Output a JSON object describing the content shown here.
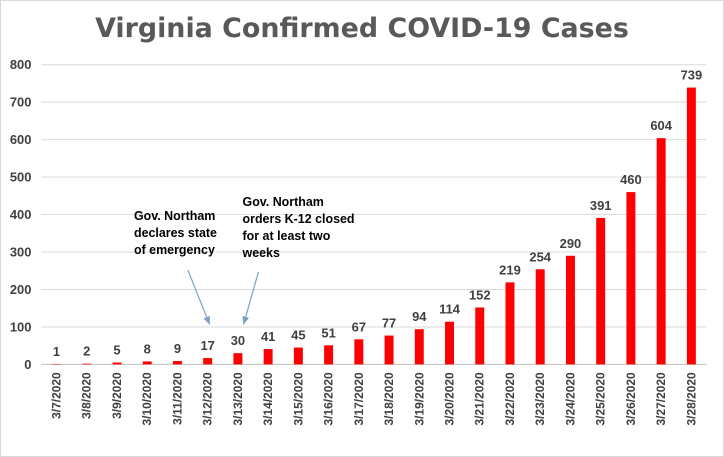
{
  "chart_data": {
    "type": "bar",
    "title": "Virginia Confirmed COVID-19 Cases",
    "categories": [
      "3/7/2020",
      "3/8/2020",
      "3/9/2020",
      "3/10/2020",
      "3/11/2020",
      "3/12/2020",
      "3/13/2020",
      "3/14/2020",
      "3/15/2020",
      "3/16/2020",
      "3/17/2020",
      "3/18/2020",
      "3/19/2020",
      "3/20/2020",
      "3/21/2020",
      "3/22/2020",
      "3/23/2020",
      "3/24/2020",
      "3/25/2020",
      "3/26/2020",
      "3/27/2020",
      "3/28/2020"
    ],
    "values": [
      1,
      2,
      5,
      8,
      9,
      17,
      30,
      41,
      45,
      51,
      67,
      77,
      94,
      114,
      152,
      219,
      254,
      290,
      391,
      460,
      604,
      739
    ],
    "ylim": [
      0,
      800
    ],
    "yticks": [
      0,
      100,
      200,
      300,
      400,
      500,
      600,
      700,
      800
    ],
    "grid": true,
    "bar_color": "#ff0000",
    "annotations": [
      {
        "category": "3/12/2020",
        "lines": [
          "Gov. Northam",
          "declares state",
          "of emergency"
        ]
      },
      {
        "category": "3/13/2020",
        "lines": [
          "Gov. Northam",
          "orders K-12 closed",
          "for at least two",
          "weeks"
        ]
      }
    ]
  }
}
